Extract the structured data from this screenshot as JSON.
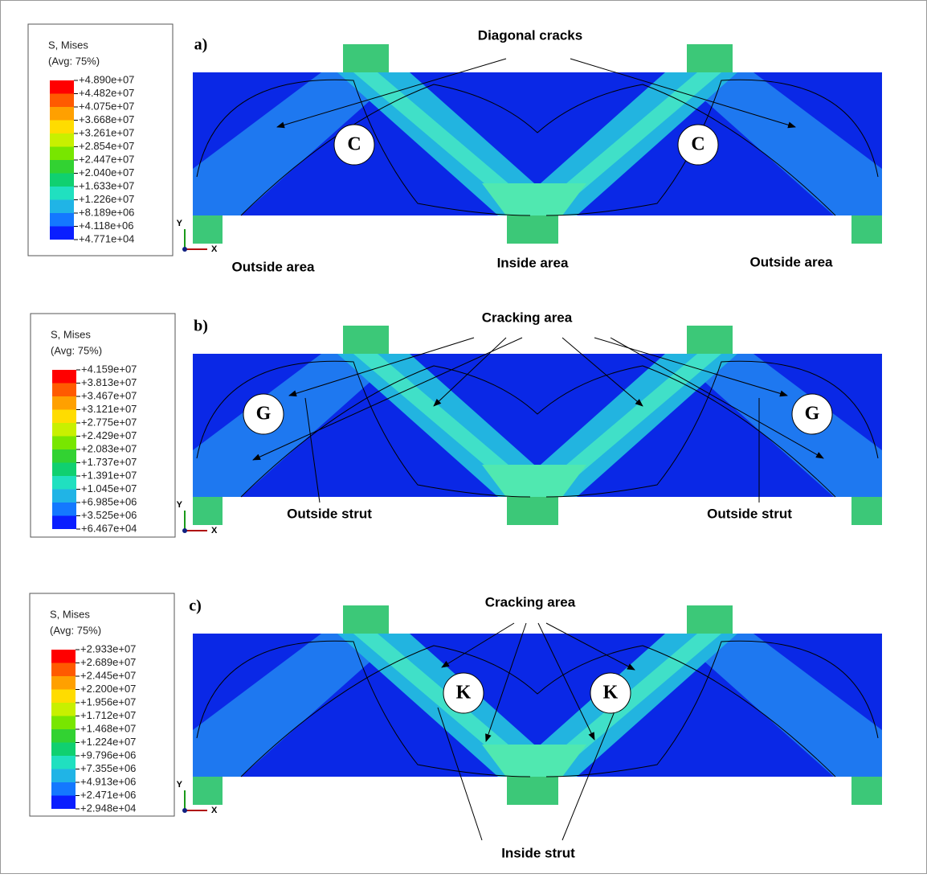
{
  "panels": [
    {
      "label": "a)",
      "legend": {
        "title": "S, Mises",
        "subtitle": "(Avg: 75%)",
        "values": [
          "+4.890e+07",
          "+4.482e+07",
          "+4.075e+07",
          "+3.668e+07",
          "+3.261e+07",
          "+2.854e+07",
          "+2.447e+07",
          "+2.040e+07",
          "+1.633e+07",
          "+1.226e+07",
          "+8.189e+06",
          "+4.118e+06",
          "+4.771e+04"
        ]
      },
      "axes": {
        "y": "Y",
        "x": "X"
      },
      "annotations": [
        "Diagonal cracks",
        "Outside area",
        "Inside area",
        "Outside area"
      ],
      "markers": [
        "C",
        "C"
      ]
    },
    {
      "label": "b)",
      "legend": {
        "title": "S, Mises",
        "subtitle": "(Avg: 75%)",
        "values": [
          "+4.159e+07",
          "+3.813e+07",
          "+3.467e+07",
          "+3.121e+07",
          "+2.775e+07",
          "+2.429e+07",
          "+2.083e+07",
          "+1.737e+07",
          "+1.391e+07",
          "+1.045e+07",
          "+6.985e+06",
          "+3.525e+06",
          "+6.467e+04"
        ]
      },
      "axes": {
        "y": "Y",
        "x": "X"
      },
      "annotations": [
        "Cracking area",
        "Outside strut",
        "Outside strut"
      ],
      "markers": [
        "G",
        "G"
      ]
    },
    {
      "label": "c)",
      "legend": {
        "title": "S, Mises",
        "subtitle": "(Avg: 75%)",
        "values": [
          "+2.933e+07",
          "+2.689e+07",
          "+2.445e+07",
          "+2.200e+07",
          "+1.956e+07",
          "+1.712e+07",
          "+1.468e+07",
          "+1.224e+07",
          "+9.796e+06",
          "+7.355e+06",
          "+4.913e+06",
          "+2.471e+06",
          "+2.948e+04"
        ]
      },
      "axes": {
        "y": "Y",
        "x": "X"
      },
      "annotations": [
        "Cracking area",
        "Inside strut"
      ],
      "markers": [
        "K",
        "K"
      ]
    }
  ],
  "legend_colors": [
    "#ff0000",
    "#ff5a00",
    "#ffa000",
    "#ffdc00",
    "#c8f000",
    "#78e600",
    "#32d232",
    "#10d070",
    "#20e0c0",
    "#20b4e6",
    "#1478ff",
    "#0a1eff"
  ]
}
